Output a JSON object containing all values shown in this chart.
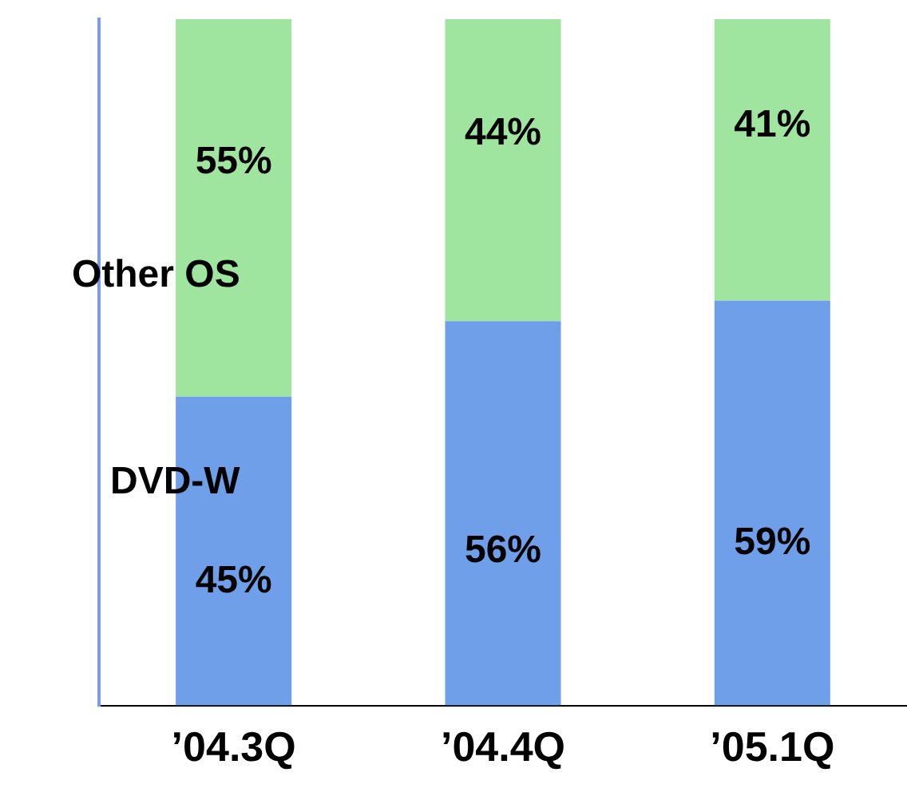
{
  "chart_data": {
    "type": "bar",
    "stacked": true,
    "categories": [
      "’04.3Q",
      "’04.4Q",
      "’05.1Q"
    ],
    "ylim": [
      0,
      100
    ],
    "series": [
      {
        "name": "DVD-W",
        "color": "#6f9fe8",
        "values": [
          45,
          56,
          59
        ],
        "value_labels": [
          "45%",
          "56%",
          "59%"
        ]
      },
      {
        "name": "Other OS",
        "color": "#9fe49f",
        "values": [
          55,
          44,
          41
        ],
        "value_labels": [
          "55%",
          "44%",
          "41%"
        ]
      }
    ],
    "legend": false,
    "grid": false
  }
}
